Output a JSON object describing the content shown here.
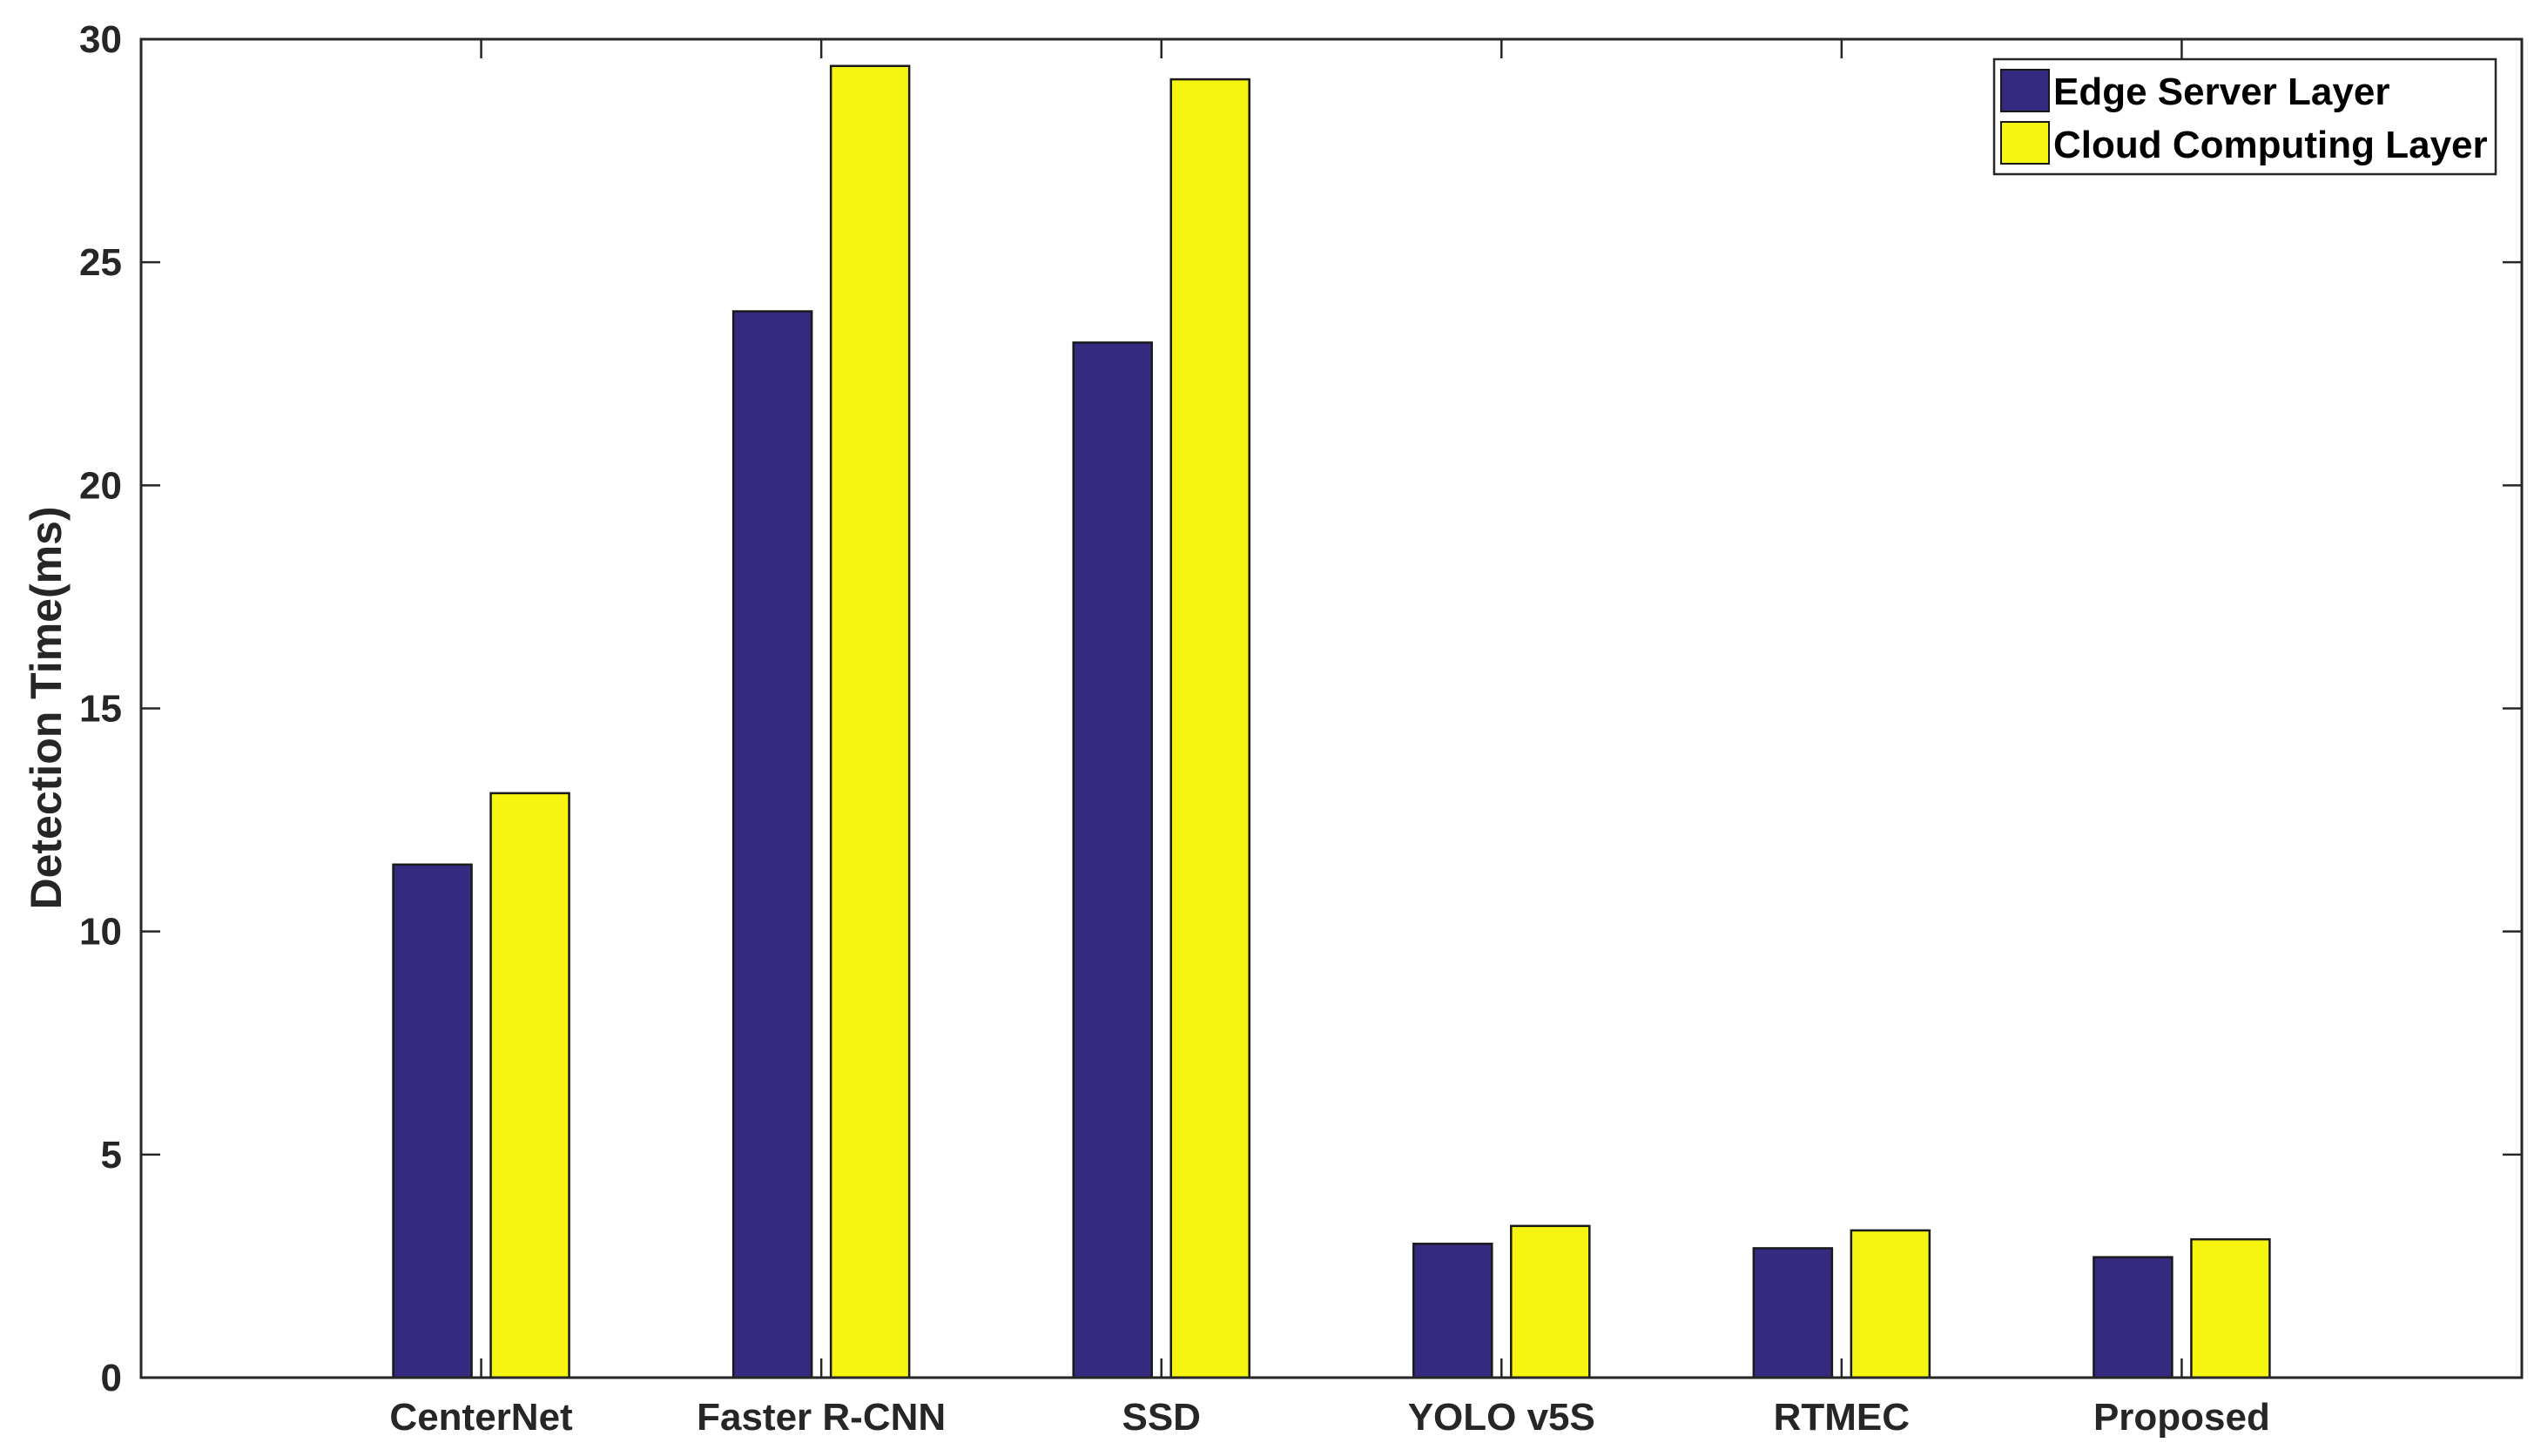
{
  "chart_data": {
    "type": "bar",
    "categories": [
      "CenterNet",
      "Faster R-CNN",
      "SSD",
      "YOLO v5S",
      "RTMEC",
      "Proposed"
    ],
    "series": [
      {
        "name": "Edge Server Layer",
        "color": "#342b80",
        "values": [
          11.5,
          23.9,
          23.2,
          3.0,
          2.9,
          2.7
        ]
      },
      {
        "name": "Cloud Computing Layer",
        "color": "#f5f50f",
        "values": [
          13.1,
          29.4,
          29.1,
          3.4,
          3.3,
          3.1
        ]
      }
    ],
    "title": "",
    "xlabel": "",
    "ylabel": "Detection Time(ms)",
    "ylim": [
      0,
      30
    ],
    "yticks": [
      "0",
      "5",
      "10",
      "15",
      "20",
      "25",
      "30"
    ],
    "grid": false,
    "legend_position": "top-right"
  }
}
